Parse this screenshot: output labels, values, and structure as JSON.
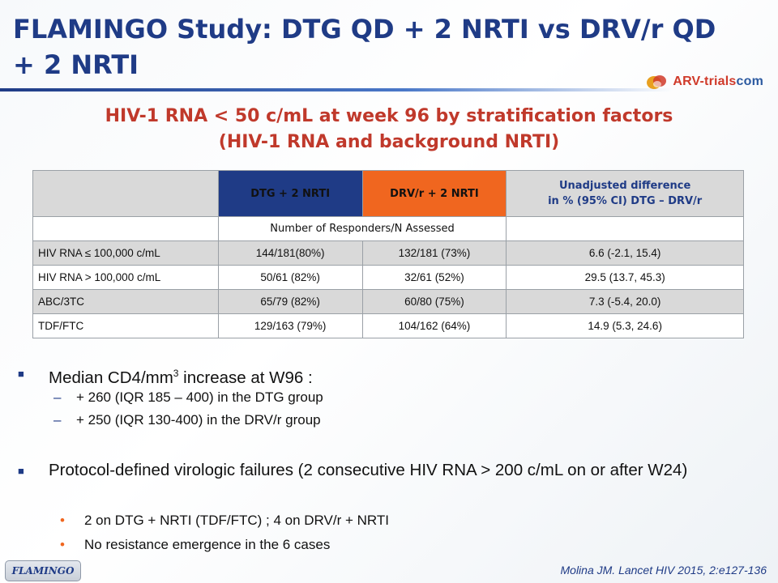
{
  "header": {
    "title": "FLAMINGO Study: DTG QD + 2 NRTI vs DRV/r QD + 2 NRTI",
    "logo_text_a": "ARV-trials",
    "logo_text_b": "com"
  },
  "subtitle": {
    "line1": "HIV-1 RNA < 50 c/mL at week 96 by stratification factors",
    "line2": "(HIV-1 RNA and background NRTI)"
  },
  "table": {
    "columns": [
      "",
      "DTG + 2 NRTI",
      "DRV/r + 2 NRTI",
      "Unadjusted difference in % (95% CI) DTG – DRV/r"
    ],
    "diff_line1": "Unadjusted difference",
    "diff_line2": "in % (95% CI) DTG – DRV/r",
    "subheader": "Number of Responders/N Assessed",
    "rows": [
      {
        "label": "HIV RNA  ≤ 100,000 c/mL",
        "dtg": "144/181(80%)",
        "drv": "132/181 (73%)",
        "diff": "6.6 (-2.1, 15.4)"
      },
      {
        "label": "HIV RNA > 100,000 c/mL",
        "dtg": "50/61 (82%)",
        "drv": "32/61 (52%)",
        "diff": "29.5  (13.7, 45.3)"
      },
      {
        "label": "ABC/3TC",
        "dtg": "65/79 (82%)",
        "drv": "60/80 (75%)",
        "diff": "7.3 (-5.4, 20.0)"
      },
      {
        "label": "TDF/FTC",
        "dtg": "129/163 (79%)",
        "drv": "104/162 (64%)",
        "diff": "14.9 (5.3, 24.6)"
      }
    ]
  },
  "bullets": {
    "cd4_pre": "Median CD4/mm",
    "cd4_sup": "3",
    "cd4_post": " increase at W96 :",
    "cd4_sub": [
      "+ 260 (IQR 185 – 400) in the DTG group",
      "+ 250 (IQR 130-400) in the DRV/r group"
    ],
    "failures": "Protocol-defined virologic failures (2 consecutive HIV RNA > 200 c/mL on or after W24)",
    "failures_sub": [
      "2 on DTG + NRTI (TDF/FTC) ; 4 on DRV/r + NRTI",
      "No resistance emergence in the 6 cases"
    ]
  },
  "footer": {
    "tab": "FLAMINGO",
    "citation": "Molina JM. Lancet HIV 2015, 2:e127-136"
  },
  "colors": {
    "title_blue": "#1f3b86",
    "subtitle_red": "#c0392b",
    "drv_orange": "#f0661f",
    "row_shade": "#d9d9d9"
  }
}
